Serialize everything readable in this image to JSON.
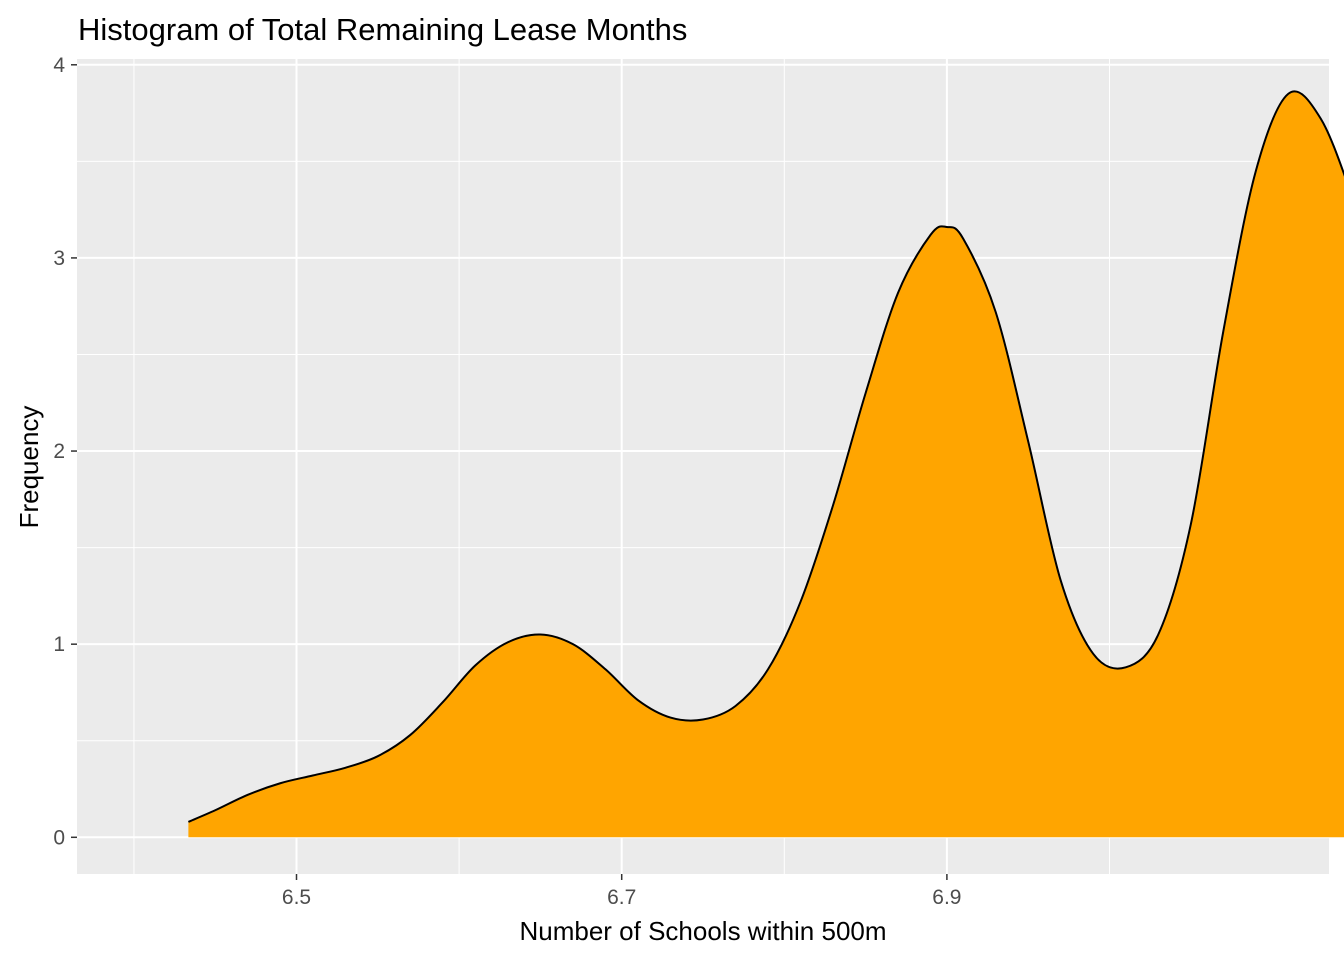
{
  "chart_data": {
    "type": "area",
    "title": "Histogram of Total Remaining Lease Months",
    "xlabel": "Number of Schools within 500m",
    "ylabel": "Frequency",
    "xlim": [
      6.365,
      7.135
    ],
    "ylim": [
      -0.19,
      4.03
    ],
    "x_ticks": [
      {
        "value": 6.5,
        "label": "6.5"
      },
      {
        "value": 6.7,
        "label": "6.7"
      },
      {
        "value": 6.9,
        "label": "6.9"
      }
    ],
    "y_ticks": [
      {
        "value": 0,
        "label": "0"
      },
      {
        "value": 1,
        "label": "1"
      },
      {
        "value": 2,
        "label": "2"
      },
      {
        "value": 3,
        "label": "3"
      },
      {
        "value": 4,
        "label": "4"
      }
    ],
    "x_minor_gridlines": [
      6.4,
      6.6,
      6.8,
      7.0
    ],
    "y_minor_gridlines": [
      0.5,
      1.5,
      2.5,
      3.5
    ],
    "grid": true,
    "legend": "none",
    "series": [
      {
        "fill_color": "#FFA500",
        "line_color": "#000000",
        "points": [
          {
            "x": 6.4335,
            "y": 0.08
          },
          {
            "x": 6.45,
            "y": 0.14
          },
          {
            "x": 6.47,
            "y": 0.22
          },
          {
            "x": 6.49,
            "y": 0.28
          },
          {
            "x": 6.51,
            "y": 0.32
          },
          {
            "x": 6.53,
            "y": 0.36
          },
          {
            "x": 6.55,
            "y": 0.42
          },
          {
            "x": 6.57,
            "y": 0.53
          },
          {
            "x": 6.59,
            "y": 0.7
          },
          {
            "x": 6.61,
            "y": 0.89
          },
          {
            "x": 6.63,
            "y": 1.01
          },
          {
            "x": 6.65,
            "y": 1.05
          },
          {
            "x": 6.67,
            "y": 1.0
          },
          {
            "x": 6.69,
            "y": 0.87
          },
          {
            "x": 6.71,
            "y": 0.71
          },
          {
            "x": 6.73,
            "y": 0.62
          },
          {
            "x": 6.75,
            "y": 0.61
          },
          {
            "x": 6.77,
            "y": 0.68
          },
          {
            "x": 6.79,
            "y": 0.87
          },
          {
            "x": 6.81,
            "y": 1.22
          },
          {
            "x": 6.83,
            "y": 1.72
          },
          {
            "x": 6.85,
            "y": 2.3
          },
          {
            "x": 6.87,
            "y": 2.82
          },
          {
            "x": 6.89,
            "y": 3.12
          },
          {
            "x": 6.9,
            "y": 3.16
          },
          {
            "x": 6.91,
            "y": 3.1
          },
          {
            "x": 6.93,
            "y": 2.72
          },
          {
            "x": 6.95,
            "y": 2.05
          },
          {
            "x": 6.97,
            "y": 1.33
          },
          {
            "x": 6.99,
            "y": 0.95
          },
          {
            "x": 7.01,
            "y": 0.88
          },
          {
            "x": 7.03,
            "y": 1.05
          },
          {
            "x": 7.05,
            "y": 1.62
          },
          {
            "x": 7.07,
            "y": 2.62
          },
          {
            "x": 7.09,
            "y": 3.45
          },
          {
            "x": 7.11,
            "y": 3.85
          },
          {
            "x": 7.13,
            "y": 3.72
          },
          {
            "x": 7.15,
            "y": 3.3
          },
          {
            "x": 7.1665,
            "y": 2.88
          }
        ]
      }
    ]
  }
}
